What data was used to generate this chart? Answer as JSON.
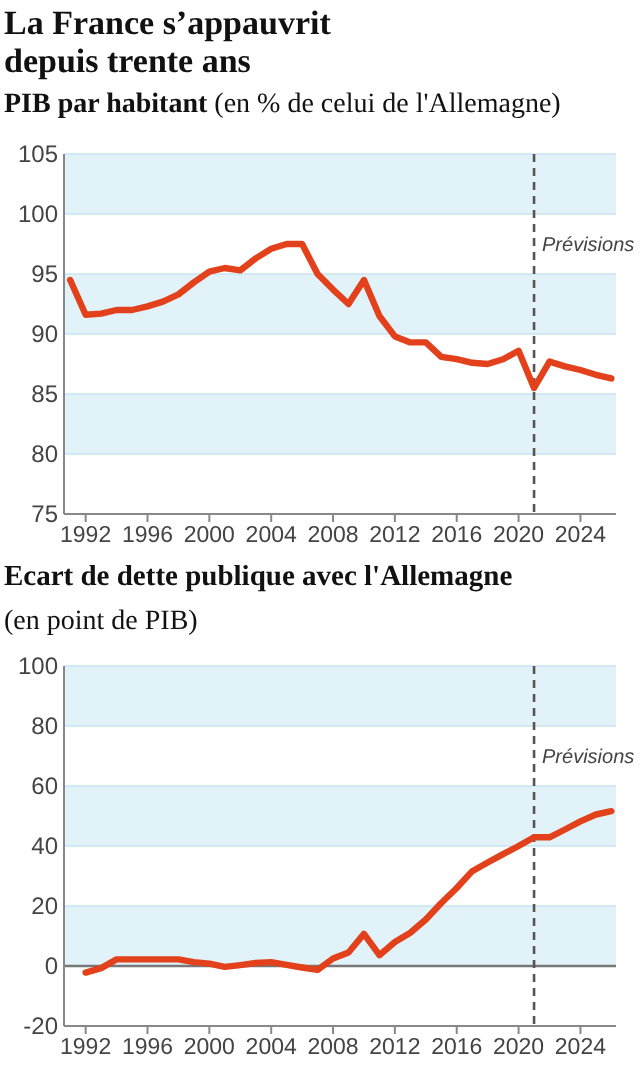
{
  "chart_data": [
    {
      "type": "line",
      "title": "La France s’appauvrit depuis trente ans",
      "subtitle": "PIB par habitant",
      "ylabel": "(en % de celui de l'Allemagne)",
      "x": [
        1991,
        1992,
        1993,
        1994,
        1995,
        1996,
        1997,
        1998,
        1999,
        2000,
        2001,
        2002,
        2003,
        2004,
        2005,
        2006,
        2007,
        2008,
        2009,
        2010,
        2011,
        2012,
        2013,
        2014,
        2015,
        2016,
        2017,
        2018,
        2019,
        2020,
        2021,
        2022,
        2023,
        2024,
        2025,
        2026
      ],
      "series": [
        {
          "color": "#e2411b",
          "values": [
            94.5,
            91.6,
            91.7,
            92.0,
            92.0,
            92.3,
            92.7,
            93.3,
            94.3,
            95.2,
            95.5,
            95.3,
            96.3,
            97.1,
            97.5,
            97.5,
            95.0,
            93.7,
            92.5,
            94.5,
            91.5,
            89.8,
            89.3,
            89.3,
            88.1,
            87.9,
            87.6,
            87.5,
            87.9,
            88.6,
            85.5,
            87.7,
            87.3,
            87.0,
            86.6,
            86.3
          ]
        }
      ],
      "xlim": [
        1990.6,
        2026.3
      ],
      "xticks": [
        1992,
        1996,
        2000,
        2004,
        2008,
        2012,
        2016,
        2020,
        2024
      ],
      "ylim": [
        75,
        105
      ],
      "yticks": [
        75,
        80,
        85,
        90,
        95,
        100,
        105
      ],
      "grid": "y",
      "ref_lines": [
        {
          "axis": "x",
          "value": 2021,
          "label": "Prévisions",
          "color": "#555555",
          "line_style": "dashed"
        }
      ]
    },
    {
      "type": "line",
      "title": "Ecart de dette publique avec l'Allemagne",
      "ylabel": "(en point de PIB)",
      "x": [
        1992,
        1993,
        1994,
        1995,
        1996,
        1997,
        1998,
        1999,
        2000,
        2001,
        2002,
        2003,
        2004,
        2005,
        2006,
        2007,
        2008,
        2009,
        2010,
        2011,
        2012,
        2013,
        2014,
        2015,
        2016,
        2017,
        2018,
        2019,
        2020,
        2021,
        2022,
        2023,
        2024,
        2025,
        2026
      ],
      "series": [
        {
          "color": "#e2411b",
          "values": [
            -2.2,
            -0.7,
            2.2,
            2.2,
            2.2,
            2.2,
            2.2,
            1.3,
            0.8,
            -0.3,
            0.3,
            1.0,
            1.3,
            0.4,
            -0.5,
            -1.3,
            2.5,
            4.5,
            10.7,
            3.6,
            8.0,
            11.1,
            15.5,
            21.0,
            26.0,
            31.6,
            34.5,
            37.3,
            40.0,
            42.9,
            42.9,
            45.5,
            48.2,
            50.5,
            51.6
          ]
        }
      ],
      "xlim": [
        1990.6,
        2026.3
      ],
      "xticks": [
        1992,
        1996,
        2000,
        2004,
        2008,
        2012,
        2016,
        2020,
        2024
      ],
      "ylim": [
        -20,
        100
      ],
      "yticks": [
        -20,
        0,
        20,
        40,
        60,
        80,
        100
      ],
      "grid": "y",
      "ref_lines": [
        {
          "axis": "x",
          "value": 2021,
          "label": "Prévisions",
          "color": "#555555",
          "line_style": "dashed"
        },
        {
          "axis": "y",
          "value": 0,
          "color": "#777777",
          "line_style": "solid"
        }
      ]
    }
  ]
}
